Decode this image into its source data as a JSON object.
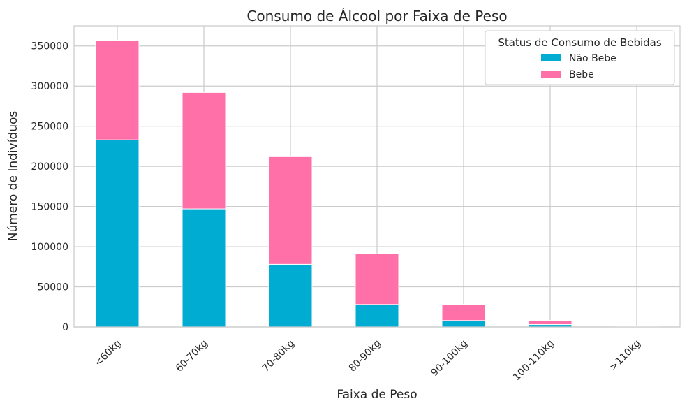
{
  "chart_data": {
    "type": "bar",
    "stacked": true,
    "title": "Consumo de Álcool por Faixa de Peso",
    "xlabel": "Faixa de Peso",
    "ylabel": "Número de Indivíduos",
    "categories": [
      "<60kg",
      "60-70kg",
      "70-80kg",
      "80-90kg",
      "90-100kg",
      "100-110kg",
      ">110kg"
    ],
    "series": [
      {
        "name": "Não Bebe",
        "color": "#00acd1",
        "values": [
          233000,
          147000,
          78000,
          28000,
          8000,
          3000,
          300
        ]
      },
      {
        "name": "Bebe",
        "color": "#ff6fa8",
        "values": [
          124000,
          145000,
          134000,
          63000,
          20000,
          5000,
          500
        ]
      }
    ],
    "ylim": [
      0,
      375000
    ],
    "yticks": [
      0,
      50000,
      100000,
      150000,
      200000,
      250000,
      300000,
      350000
    ],
    "grid": true,
    "legend": {
      "title": "Status de Consumo de Bebidas",
      "placement": "top-right"
    }
  }
}
